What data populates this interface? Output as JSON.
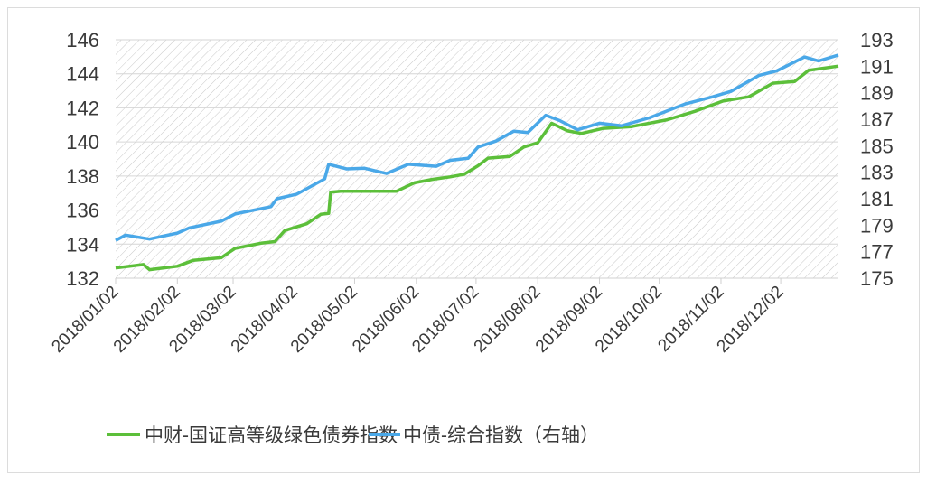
{
  "chart_data": {
    "type": "line",
    "title": "",
    "xlabel": "",
    "ylabel": "",
    "y2label": "",
    "x_tick_labels": [
      "2018/01/02",
      "2018/02/02",
      "2018/03/02",
      "2018/04/02",
      "2018/05/02",
      "2018/06/02",
      "2018/07/02",
      "2018/08/02",
      "2018/09/02",
      "2018/10/02",
      "2018/11/02",
      "2018/12/02"
    ],
    "xlim": [
      "2018-01-02",
      "2018-12-31"
    ],
    "ylim": [
      132,
      146
    ],
    "y_ticks": [
      132,
      134,
      136,
      138,
      140,
      142,
      144,
      146
    ],
    "y2lim": [
      175,
      193
    ],
    "y2_ticks": [
      175,
      177,
      179,
      181,
      183,
      185,
      187,
      189,
      191,
      193
    ],
    "grid": "horizontal",
    "background": "diagonal-hatch",
    "legend_position": "bottom",
    "series": [
      {
        "name": "中财-国证高等级绿色债券指数",
        "axis": "left",
        "color": "#5cbf3a",
        "x": [
          "2018-01-02",
          "2018-01-16",
          "2018-01-19",
          "2018-02-02",
          "2018-02-10",
          "2018-02-24",
          "2018-03-03",
          "2018-03-16",
          "2018-03-23",
          "2018-03-28",
          "2018-04-08",
          "2018-04-15",
          "2018-04-19",
          "2018-04-20",
          "2018-04-25",
          "2018-05-14",
          "2018-05-23",
          "2018-06-01",
          "2018-06-10",
          "2018-06-19",
          "2018-06-26",
          "2018-07-03",
          "2018-07-08",
          "2018-07-19",
          "2018-07-26",
          "2018-08-02",
          "2018-08-09",
          "2018-08-17",
          "2018-08-24",
          "2018-09-04",
          "2018-09-18",
          "2018-10-06",
          "2018-10-20",
          "2018-11-03",
          "2018-11-16",
          "2018-11-28",
          "2018-12-09",
          "2018-12-16",
          "2018-12-31"
        ],
        "y": [
          132.6,
          132.8,
          132.5,
          132.7,
          133.05,
          133.2,
          133.75,
          134.05,
          134.15,
          134.8,
          135.2,
          135.75,
          135.8,
          137.05,
          137.1,
          137.1,
          137.1,
          137.6,
          137.8,
          137.95,
          138.1,
          138.6,
          139.05,
          139.15,
          139.7,
          139.95,
          141.1,
          140.65,
          140.5,
          140.8,
          140.9,
          141.3,
          141.8,
          142.4,
          142.65,
          143.45,
          143.55,
          144.2,
          144.45
        ]
      },
      {
        "name": "中债-综合指数（右轴）",
        "axis": "right",
        "color": "#4aa8e8",
        "x": [
          "2018-01-02",
          "2018-01-07",
          "2018-01-19",
          "2018-01-25",
          "2018-02-02",
          "2018-02-08",
          "2018-02-24",
          "2018-03-03",
          "2018-03-21",
          "2018-03-24",
          "2018-04-03",
          "2018-04-17",
          "2018-04-19",
          "2018-04-28",
          "2018-05-07",
          "2018-05-18",
          "2018-05-29",
          "2018-06-12",
          "2018-06-19",
          "2018-06-28",
          "2018-07-03",
          "2018-07-12",
          "2018-07-21",
          "2018-07-28",
          "2018-08-06",
          "2018-08-13",
          "2018-08-22",
          "2018-09-02",
          "2018-09-13",
          "2018-09-27",
          "2018-10-15",
          "2018-10-29",
          "2018-11-07",
          "2018-11-21",
          "2018-11-30",
          "2018-12-14",
          "2018-12-21",
          "2018-12-31"
        ],
        "y": [
          177.85,
          178.25,
          177.95,
          178.15,
          178.4,
          178.8,
          179.3,
          179.85,
          180.4,
          181.0,
          181.35,
          182.5,
          183.6,
          183.25,
          183.3,
          182.9,
          183.6,
          183.45,
          183.9,
          184.05,
          184.9,
          185.35,
          186.1,
          186.0,
          187.3,
          186.9,
          186.2,
          186.7,
          186.5,
          187.1,
          188.15,
          188.7,
          189.1,
          190.3,
          190.65,
          191.7,
          191.4,
          191.85
        ]
      }
    ]
  }
}
